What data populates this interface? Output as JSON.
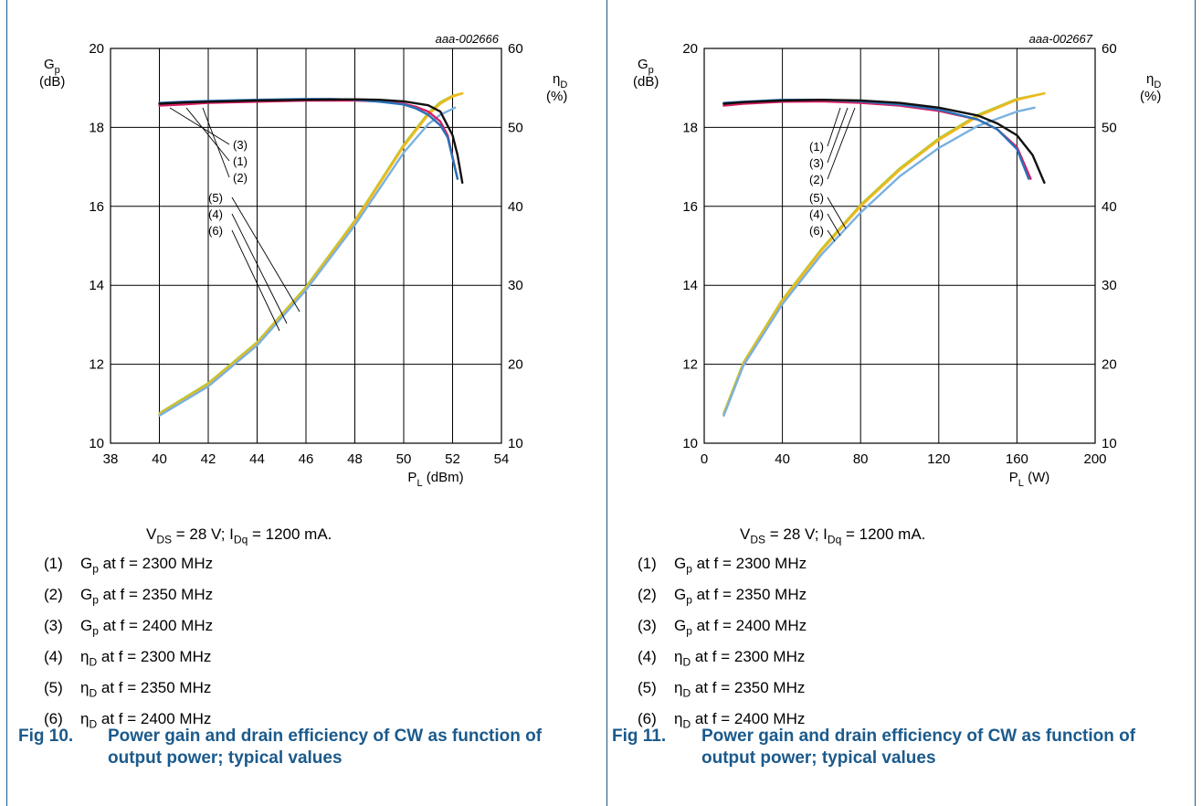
{
  "figures": [
    {
      "id": "aaa-002666",
      "condition": "V<sub>DS</sub> = 28 V; I<sub>Dq</sub> = 1200 mA.",
      "legend": [
        {
          "num": "(1)",
          "text": "G<sub>p</sub> at f = 2300 MHz"
        },
        {
          "num": "(2)",
          "text": "G<sub>p</sub> at f = 2350 MHz"
        },
        {
          "num": "(3)",
          "text": "G<sub>p</sub> at f = 2400 MHz"
        },
        {
          "num": "(4)",
          "text": "η<sub>D</sub> at f = 2300 MHz"
        },
        {
          "num": "(5)",
          "text": "η<sub>D</sub> at f = 2350 MHz"
        },
        {
          "num": "(6)",
          "text": "η<sub>D</sub> at f = 2400 MHz"
        }
      ],
      "fig_label": "Fig 10.",
      "caption": "Power gain and drain efficiency of CW as function of output power; typical values"
    },
    {
      "id": "aaa-002667",
      "condition": "V<sub>DS</sub> = 28 V; I<sub>Dq</sub> = 1200 mA.",
      "legend": [
        {
          "num": "(1)",
          "text": "G<sub>p</sub> at f = 2300 MHz"
        },
        {
          "num": "(2)",
          "text": "G<sub>p</sub> at f = 2350 MHz"
        },
        {
          "num": "(3)",
          "text": "G<sub>p</sub> at f = 2400 MHz"
        },
        {
          "num": "(4)",
          "text": "η<sub>D</sub> at f = 2300 MHz"
        },
        {
          "num": "(5)",
          "text": "η<sub>D</sub> at f = 2350 MHz"
        },
        {
          "num": "(6)",
          "text": "η<sub>D</sub> at f = 2400 MHz"
        }
      ],
      "fig_label": "Fig 11.",
      "caption": "Power gain and drain efficiency of CW as function of output power; typical values"
    }
  ],
  "chart_data": [
    {
      "type": "line",
      "id_label": "aaa-002666",
      "xlabel": "P<tspan font-size='11' dy='5'>L</tspan><tspan dy='-5'> (dBm)</tspan>",
      "ylabel_left": [
        "G<tspan font-size='11' dy='5'>p</tspan>",
        "(dB)"
      ],
      "ylabel_right": [
        "η<tspan font-size='11' dy='5'>D</tspan>",
        "(%)"
      ],
      "xlim": [
        38,
        54
      ],
      "xticks": [
        38,
        40,
        42,
        44,
        46,
        48,
        50,
        52,
        54
      ],
      "ylim_left": [
        10,
        20
      ],
      "yticks_left": [
        10,
        12,
        14,
        16,
        18,
        20
      ],
      "ylim_right": [
        10,
        60
      ],
      "yticks_right": [
        10,
        20,
        30,
        40,
        50,
        60
      ],
      "grid": true,
      "series": [
        {
          "label": "(1)",
          "axis": "left",
          "color": "#d81f63",
          "x": [
            40,
            41,
            42,
            44,
            46,
            48,
            49,
            50,
            50.5,
            51,
            51.5,
            51.8,
            52.2
          ],
          "y": [
            18.55,
            18.58,
            18.62,
            18.65,
            18.68,
            18.68,
            18.66,
            18.6,
            18.52,
            18.4,
            18.15,
            17.8,
            16.7
          ]
        },
        {
          "label": "(2)",
          "axis": "left",
          "color": "#2872b8",
          "x": [
            40,
            41,
            42,
            44,
            46,
            47,
            48,
            49,
            50,
            50.5,
            51,
            51.5,
            51.8,
            52.2
          ],
          "y": [
            18.62,
            18.65,
            18.67,
            18.7,
            18.72,
            18.72,
            18.7,
            18.65,
            18.58,
            18.48,
            18.32,
            18.05,
            17.75,
            16.7
          ]
        },
        {
          "label": "(3)",
          "axis": "left",
          "color": "#111111",
          "x": [
            40,
            41,
            42,
            44,
            46,
            48,
            49,
            50,
            51,
            51.5,
            52,
            52.2,
            52.4
          ],
          "y": [
            18.6,
            18.63,
            18.65,
            18.68,
            18.7,
            18.71,
            18.7,
            18.66,
            18.56,
            18.4,
            17.8,
            17.3,
            16.6
          ]
        },
        {
          "label": "(4)",
          "axis": "right",
          "color": "#b5c832",
          "x": [
            40,
            42,
            44,
            46,
            48,
            49,
            50,
            51,
            51.5,
            52,
            52.4
          ],
          "y": [
            13.8,
            17.6,
            22.8,
            29.8,
            38.2,
            43.0,
            47.8,
            51.8,
            53.2,
            54.0,
            54.3
          ]
        },
        {
          "label": "(5)",
          "axis": "right",
          "color": "#f0b81e",
          "x": [
            40,
            42,
            44,
            46,
            48,
            49,
            50,
            51,
            51.5,
            52,
            52.4
          ],
          "y": [
            13.6,
            17.4,
            22.6,
            29.6,
            38.0,
            42.8,
            47.6,
            51.6,
            53.0,
            53.9,
            54.3
          ]
        },
        {
          "label": "(6)",
          "axis": "right",
          "color": "#7ab1de",
          "x": [
            40,
            42,
            44,
            46,
            48,
            49,
            50,
            51,
            51.5,
            52.1
          ],
          "y": [
            13.5,
            17.2,
            22.4,
            29.4,
            37.6,
            42.2,
            46.8,
            50.4,
            51.6,
            52.5
          ]
        }
      ],
      "annotations": [
        "(3)",
        "(1)",
        "(2)",
        "(5)",
        "(4)",
        "(6)"
      ]
    },
    {
      "type": "line",
      "id_label": "aaa-002667",
      "xlabel": "P<tspan font-size='11' dy='5'>L</tspan><tspan dy='-5'> (W)</tspan>",
      "ylabel_left": [
        "G<tspan font-size='11' dy='5'>p</tspan>",
        "(dB)"
      ],
      "ylabel_right": [
        "η<tspan font-size='11' dy='5'>D</tspan>",
        "(%)"
      ],
      "xlim": [
        0,
        200
      ],
      "xticks": [
        0,
        40,
        80,
        120,
        160,
        200
      ],
      "ylim_left": [
        10,
        20
      ],
      "yticks_left": [
        10,
        12,
        14,
        16,
        18,
        20
      ],
      "ylim_right": [
        10,
        60
      ],
      "yticks_right": [
        10,
        20,
        30,
        40,
        50,
        60
      ],
      "grid": true,
      "series": [
        {
          "label": "(1)",
          "axis": "left",
          "color": "#d81f63",
          "x": [
            10,
            20,
            40,
            60,
            80,
            100,
            120,
            140,
            150,
            160,
            167
          ],
          "y": [
            18.55,
            18.6,
            18.65,
            18.66,
            18.62,
            18.55,
            18.42,
            18.2,
            17.95,
            17.5,
            16.7
          ]
        },
        {
          "label": "(2)",
          "axis": "left",
          "color": "#2872b8",
          "x": [
            10,
            20,
            40,
            60,
            80,
            100,
            120,
            140,
            150,
            160,
            166
          ],
          "y": [
            18.62,
            18.65,
            18.7,
            18.7,
            18.66,
            18.58,
            18.45,
            18.2,
            17.95,
            17.45,
            16.7
          ]
        },
        {
          "label": "(3)",
          "axis": "left",
          "color": "#111111",
          "x": [
            10,
            20,
            40,
            60,
            80,
            100,
            120,
            140,
            150,
            160,
            168,
            174
          ],
          "y": [
            18.6,
            18.64,
            18.68,
            18.7,
            18.68,
            18.62,
            18.5,
            18.3,
            18.1,
            17.8,
            17.3,
            16.6
          ]
        },
        {
          "label": "(4)",
          "axis": "right",
          "color": "#b5c832",
          "x": [
            10,
            20,
            40,
            60,
            80,
            100,
            120,
            140,
            160,
            174
          ],
          "y": [
            13.8,
            20.2,
            28.2,
            34.6,
            40.2,
            44.8,
            48.6,
            51.6,
            53.6,
            54.3
          ]
        },
        {
          "label": "(5)",
          "axis": "right",
          "color": "#f0b81e",
          "x": [
            10,
            20,
            40,
            60,
            80,
            100,
            120,
            140,
            160,
            174
          ],
          "y": [
            13.6,
            20.0,
            28.0,
            34.4,
            40.0,
            44.6,
            48.4,
            51.4,
            53.5,
            54.3
          ]
        },
        {
          "label": "(6)",
          "axis": "right",
          "color": "#7ab1de",
          "x": [
            10,
            20,
            40,
            60,
            80,
            100,
            120,
            140,
            160,
            169
          ],
          "y": [
            13.5,
            19.8,
            27.6,
            33.9,
            39.2,
            43.8,
            47.4,
            50.2,
            52.0,
            52.5
          ]
        }
      ],
      "annotations": [
        "(1)",
        "(3)",
        "(2)",
        "(5)",
        "(4)",
        "(6)"
      ]
    }
  ]
}
